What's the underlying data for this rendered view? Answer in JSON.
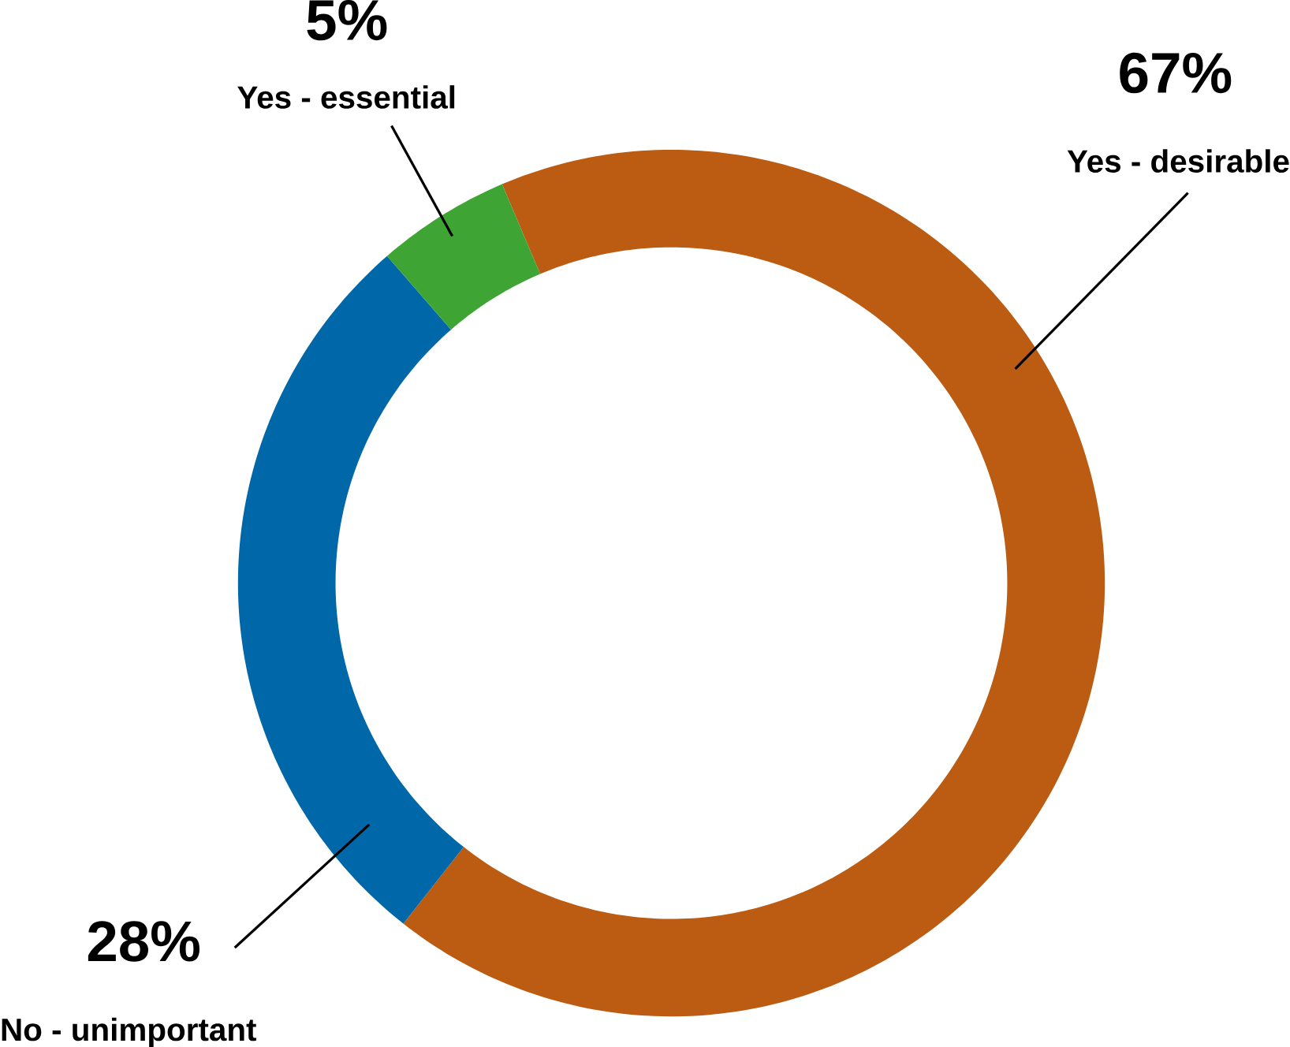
{
  "chart_data": {
    "type": "donut",
    "categories": [
      "Yes - desirable",
      "No - unimportant",
      "Yes - essential"
    ],
    "values": [
      67,
      28,
      5
    ],
    "colors": [
      "#bb5c12",
      "#0068a8",
      "#3ea535"
    ],
    "value_labels": [
      "67%",
      "28%",
      "5%"
    ]
  }
}
